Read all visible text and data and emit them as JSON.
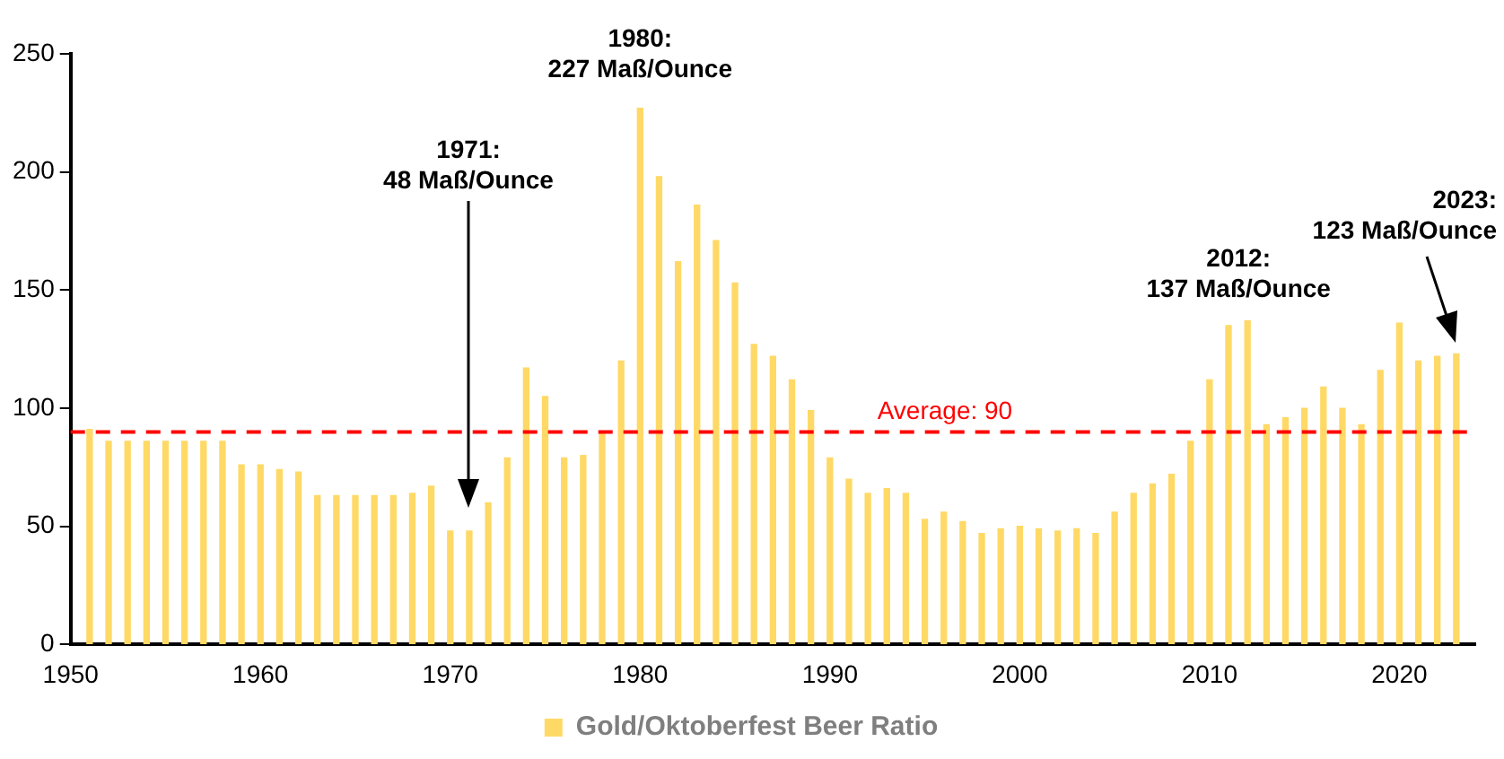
{
  "chart_data": {
    "type": "bar",
    "x": [
      1951,
      1952,
      1953,
      1954,
      1955,
      1956,
      1957,
      1958,
      1959,
      1960,
      1961,
      1962,
      1963,
      1964,
      1965,
      1966,
      1967,
      1968,
      1969,
      1970,
      1971,
      1972,
      1973,
      1974,
      1975,
      1976,
      1977,
      1978,
      1979,
      1980,
      1981,
      1982,
      1983,
      1984,
      1985,
      1986,
      1987,
      1988,
      1989,
      1990,
      1991,
      1992,
      1993,
      1994,
      1995,
      1996,
      1997,
      1998,
      1999,
      2000,
      2001,
      2002,
      2003,
      2004,
      2005,
      2006,
      2007,
      2008,
      2009,
      2010,
      2011,
      2012,
      2013,
      2014,
      2015,
      2016,
      2017,
      2018,
      2019,
      2020,
      2021,
      2022,
      2023
    ],
    "series": [
      {
        "name": "Gold/Oktoberfest Beer Ratio",
        "color": "#ffd966",
        "values": [
          91,
          86,
          86,
          86,
          86,
          86,
          86,
          86,
          76,
          76,
          74,
          73,
          63,
          63,
          63,
          63,
          63,
          64,
          67,
          48,
          48,
          60,
          79,
          117,
          105,
          79,
          80,
          90,
          120,
          227,
          198,
          162,
          186,
          171,
          153,
          127,
          122,
          112,
          99,
          79,
          70,
          64,
          66,
          64,
          53,
          56,
          52,
          47,
          49,
          50,
          49,
          48,
          49,
          47,
          56,
          64,
          68,
          72,
          86,
          112,
          135,
          137,
          93,
          96,
          100,
          109,
          100,
          93,
          116,
          136,
          120,
          122,
          123
        ]
      }
    ],
    "xlim": [
      1950,
      2024
    ],
    "xticks": [
      1950,
      1960,
      1970,
      1980,
      1990,
      2000,
      2010,
      2020
    ],
    "ylim": [
      0,
      250
    ],
    "yticks": [
      0,
      50,
      100,
      150,
      200,
      250
    ],
    "grid": false,
    "legend": "bottom",
    "ref_lines": [
      {
        "axis": "y",
        "value": 90,
        "label": "Average: 90",
        "color": "#ff0000",
        "line_style": "dashed"
      }
    ],
    "annotations": [
      "1971:\n48 Maß/Ounce",
      {
        "text": "1980:\n227 Maß/Ounce",
        "x": 1980,
        "y": 227
      },
      {
        "text": "2012:\n137 Maß/Ounce",
        "x": 2012,
        "y": 137
      },
      "2023:\n123 Maß/Ounce"
    ]
  }
}
